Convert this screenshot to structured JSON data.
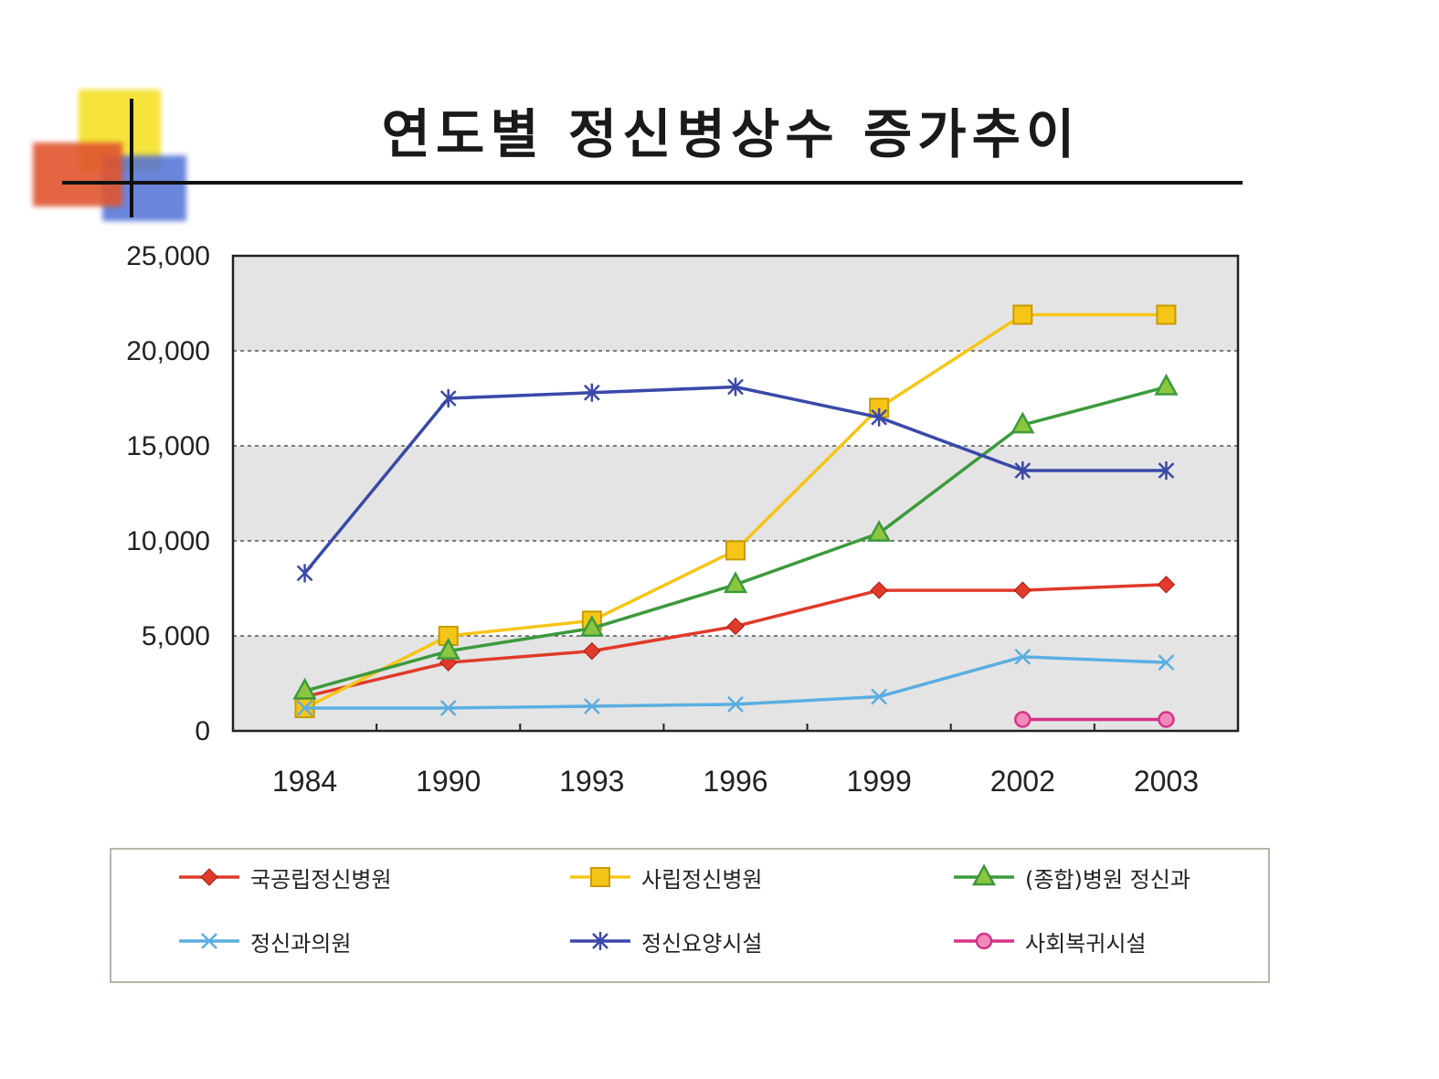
{
  "title": "연도별 정신병상수 증가추이",
  "chart_data": {
    "type": "line",
    "title": "연도별 정신병상수 증가추이",
    "xlabel": "",
    "ylabel": "",
    "categories": [
      "1984",
      "1990",
      "1993",
      "1996",
      "1999",
      "2002",
      "2003"
    ],
    "ylim": [
      0,
      25000
    ],
    "yticks": [
      0,
      5000,
      10000,
      15000,
      20000,
      25000
    ],
    "ytick_labels": [
      "0",
      "5,000",
      "10,000",
      "15,000",
      "20,000",
      "25,000"
    ],
    "grid": "horizontal-dashed",
    "legend_position": "bottom",
    "series": [
      {
        "name": "국공립정신병원",
        "color": "#e03a2a",
        "marker": "diamond",
        "values": [
          1800,
          3600,
          4200,
          5500,
          7400,
          7400,
          7700
        ]
      },
      {
        "name": "사립정신병원",
        "color": "#f5c518",
        "marker": "square",
        "values": [
          1200,
          5000,
          5800,
          9500,
          17000,
          21900,
          21900
        ]
      },
      {
        "name": "(종합)병원 정신과",
        "color": "#3c9a3c",
        "marker": "triangle",
        "values": [
          2100,
          4200,
          5400,
          7700,
          10400,
          16100,
          18100
        ]
      },
      {
        "name": "정신과의원",
        "color": "#5aaee0",
        "marker": "x",
        "values": [
          1200,
          1200,
          1300,
          1400,
          1800,
          3900,
          3600
        ]
      },
      {
        "name": "정신요양시설",
        "color": "#3a49a8",
        "marker": "asterisk",
        "values": [
          8300,
          17500,
          17800,
          18100,
          16500,
          13700,
          13700
        ]
      },
      {
        "name": "사회복귀시설",
        "color": "#d6338a",
        "marker": "circle",
        "values": [
          null,
          null,
          null,
          null,
          null,
          600,
          600
        ]
      }
    ]
  }
}
